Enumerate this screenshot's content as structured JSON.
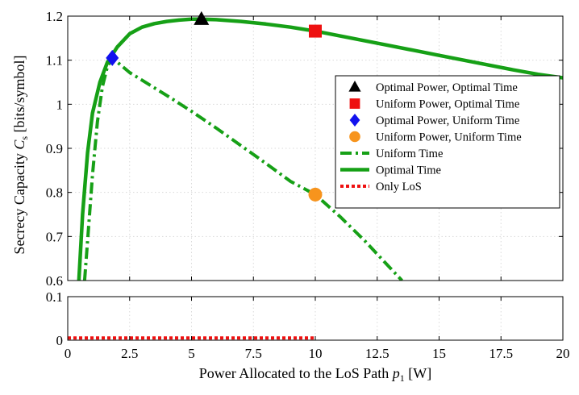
{
  "chart_data": {
    "type": "line",
    "xlabel_prefix": "Power Allocated to the LoS Path ",
    "xlabel_var": "p",
    "xlabel_sub": "1",
    "xlabel_suffix": " [W]",
    "ylabel_prefix": "Secrecy Capacity ",
    "ylabel_var": "C",
    "ylabel_sub": "s",
    "ylabel_suffix": " [bits/symbol]",
    "xlim": [
      0,
      20
    ],
    "upper_ylim": [
      0.6,
      1.2
    ],
    "lower_ylim": [
      0,
      0.1
    ],
    "x_ticks": [
      "0",
      "2.5",
      "5",
      "7.5",
      "10",
      "12.5",
      "15",
      "17.5",
      "20"
    ],
    "upper_y_ticks": [
      "0.6",
      "0.7",
      "0.8",
      "0.9",
      "1",
      "1.1",
      "1.2"
    ],
    "lower_y_ticks": [
      "0",
      "0.1"
    ],
    "grid": true,
    "legend_position": "right",
    "series": [
      {
        "name": "Uniform Time",
        "style": "dash-dot",
        "color": "#16a016",
        "x": [
          0.68,
          0.8,
          1.0,
          1.2,
          1.4,
          1.6,
          1.8,
          2.5,
          4,
          5,
          6,
          7,
          8,
          9,
          10,
          11,
          12,
          13,
          13.5
        ],
        "y": [
          0.6,
          0.69,
          0.84,
          0.96,
          1.04,
          1.085,
          1.105,
          1.072,
          1.02,
          0.984,
          0.946,
          0.906,
          0.866,
          0.825,
          0.795,
          0.745,
          0.69,
          0.63,
          0.6
        ]
      },
      {
        "name": "Optimal Time",
        "style": "solid",
        "color": "#16a016",
        "x": [
          0.45,
          0.6,
          0.8,
          1.0,
          1.3,
          1.6,
          2.0,
          2.5,
          3,
          3.5,
          4,
          4.5,
          5,
          5.4,
          6,
          7,
          8,
          9,
          10,
          11,
          12,
          13,
          14,
          15,
          16,
          17,
          18,
          19,
          20
        ],
        "y": [
          0.6,
          0.75,
          0.89,
          0.98,
          1.05,
          1.095,
          1.13,
          1.16,
          1.175,
          1.183,
          1.188,
          1.191,
          1.193,
          1.193,
          1.192,
          1.188,
          1.182,
          1.175,
          1.166,
          1.155,
          1.144,
          1.133,
          1.122,
          1.111,
          1.1,
          1.089,
          1.078,
          1.068,
          1.06
        ]
      },
      {
        "name": "Only LoS",
        "style": "dotted",
        "color": "#ee1111",
        "x": [
          0,
          10
        ],
        "y": [
          0.005,
          0.005
        ]
      }
    ],
    "markers": [
      {
        "name": "Optimal Power, Optimal Time",
        "shape": "triangle",
        "color": "#000000",
        "x": 5.4,
        "y": 1.193
      },
      {
        "name": "Uniform Power, Optimal Time",
        "shape": "square",
        "color": "#ee1111",
        "x": 10,
        "y": 1.166
      },
      {
        "name": "Optimal Power, Uniform Time",
        "shape": "diamond",
        "color": "#1111ee",
        "x": 1.8,
        "y": 1.105
      },
      {
        "name": "Uniform Power, Uniform Time",
        "shape": "circle",
        "color": "#f7941d",
        "x": 10,
        "y": 0.795
      }
    ]
  }
}
